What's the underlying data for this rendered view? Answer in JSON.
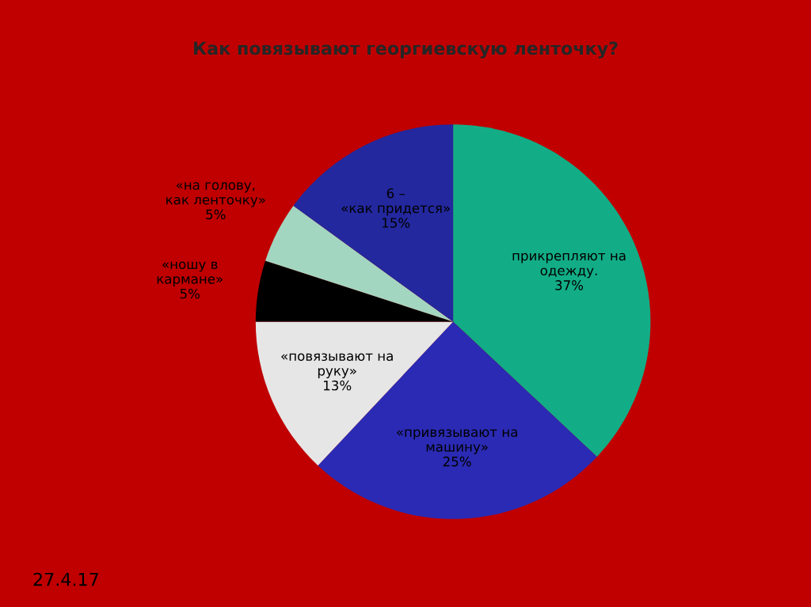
{
  "chart_data": {
    "type": "pie",
    "title": "Как повязывают георгиевскую ленточку?",
    "categories": [
      "прикрепляют на одежду.",
      "«привязывают на машину»",
      "«повязывают на руку»",
      "«ношу в кармане»",
      "«на голову, как ленточку»",
      "6 – «как придется»"
    ],
    "values": [
      37,
      25,
      13,
      5,
      5,
      15
    ],
    "value_labels": [
      "37%",
      "25%",
      "13%",
      "5%",
      "5%",
      "15%"
    ],
    "colors": [
      "#12ad86",
      "#2a2ab4",
      "#e6e6e6",
      "#000000",
      "#a3d6c0",
      "#23289e"
    ],
    "annotations": [
      "27.4.17"
    ]
  }
}
